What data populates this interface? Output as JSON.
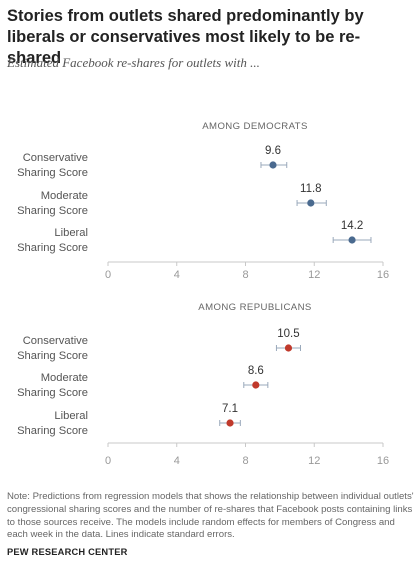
{
  "header": {
    "title": "Stories from outlets shared predominantly by liberals or conservatives most likely to be re-shared",
    "subtitle": "Estimated Facebook re-shares for outlets with ..."
  },
  "note": "Note: Predictions from regression models that shows the relationship between individual outlets' congressional sharing scores and the number of re-shares that Facebook posts containing links to those sources receive. The models include random effects for members of Congress and each week in the data. Lines indicate standard errors.",
  "source": "PEW RESEARCH CENTER",
  "colors": {
    "democrats": "#4a6a8f",
    "republicans": "#c0392b",
    "error_bar": "#9aa9bb",
    "axis": "#c8c8c8"
  },
  "chart_data": [
    {
      "type": "scatter",
      "title": "AMONG DEMOCRATS",
      "categories": [
        [
          "Conservative",
          "Sharing Score"
        ],
        [
          "Moderate",
          "Sharing Score"
        ],
        [
          "Liberal",
          "Sharing Score"
        ]
      ],
      "values": [
        9.6,
        11.8,
        14.2
      ],
      "labels": [
        "9.6",
        "11.8",
        "14.2"
      ],
      "error_low": [
        8.9,
        11.0,
        13.1
      ],
      "error_high": [
        10.4,
        12.7,
        15.3
      ],
      "xlim": [
        0,
        16
      ],
      "xticks": [
        "0",
        "4",
        "8",
        "12",
        "16"
      ],
      "color": "democrats"
    },
    {
      "type": "scatter",
      "title": "AMONG REPUBLICANS",
      "categories": [
        [
          "Conservative",
          "Sharing Score"
        ],
        [
          "Moderate",
          "Sharing Score"
        ],
        [
          "Liberal",
          "Sharing Score"
        ]
      ],
      "values": [
        10.5,
        8.6,
        7.1
      ],
      "labels": [
        "10.5",
        "8.6",
        "7.1"
      ],
      "error_low": [
        9.8,
        7.9,
        6.5
      ],
      "error_high": [
        11.2,
        9.3,
        7.7
      ],
      "xlim": [
        0,
        16
      ],
      "xticks": [
        "0",
        "4",
        "8",
        "12",
        "16"
      ],
      "color": "republicans"
    }
  ]
}
